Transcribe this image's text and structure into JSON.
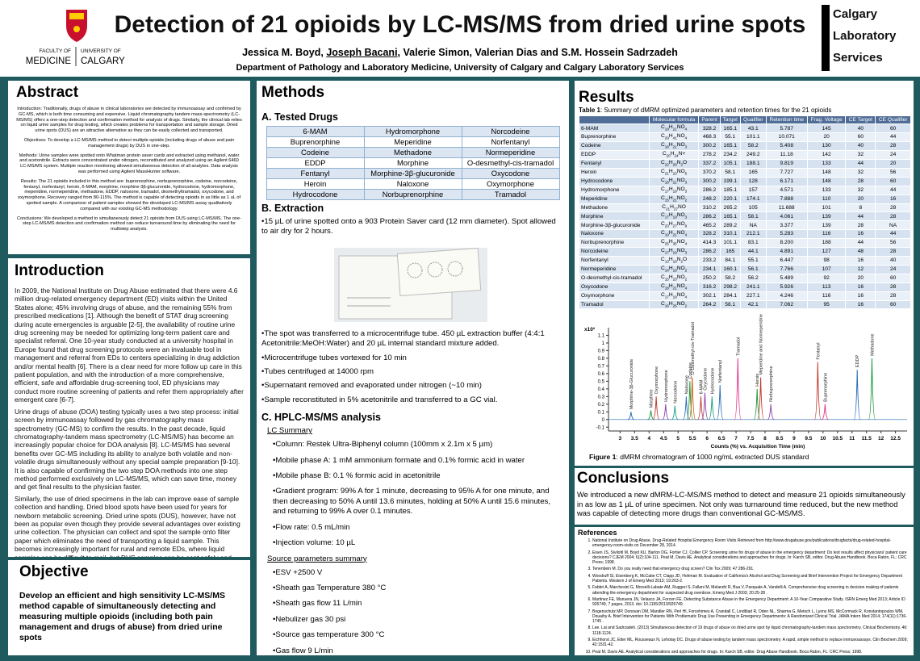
{
  "header": {
    "logo_left": {
      "faculty": "FACULTY OF",
      "medicine": "MEDICINE",
      "university": "UNIVERSITY OF",
      "calgary": "CALGARY"
    },
    "title": "Detection of 21 opioids by LC-MS/MS from dried urine spots",
    "authors": [
      "Jessica M. Boyd, ",
      "Joseph Bacani",
      ", Valerie Simon, Valerian Dias and S.M. Hossein Sadrzadeh"
    ],
    "department": "Department of Pathology and Laboratory Medicine, University of Calgary and Calgary Laboratory Services",
    "logo_right": [
      "Calgary",
      "Laboratory",
      "Services"
    ]
  },
  "abstract": {
    "title": "Abstract",
    "paragraphs": [
      "Introduction: Traditionally, drugs of abuse in clinical laboratories are detected by immunoassay and confirmed by GC-MS, which is both time consuming and expensive. Liquid chromatography tandem mass-spectrometry (LC-MS/MS) offers a one-step detection and confirmation method for analysis of drugs. Similarly, the clinical lab relies on liquid urine samples for drug testing, which creates problems for transportation and sample storage. Dried urine spots (DUS) are an attractive alternative as they can be easily collected and transported.",
      "Objectives: To develop a LC-MS/MS method to detect multiple opioids (including drugs of abuse and pain management drugs) by DUS in one-step.",
      "Methods: Urine samples were spotted onto Whatman protein saver cards and extracted using methanol, water and acetonitrile. Extracts were concentrated under nitrogen, reconstituted and analyzed using an Agilent 6460 LC-MS/MS system. Multiple reaction monitoring allowed simultaneous detection of all analytes. Data analysis was performed using Agilent MassHunter software.",
      "Results: The 21 opioids included in this method are: buprenorphine, norbuprenorphine, codeine, norcodeine, fentanyl, norfentanyl, heroin, 6-MAM, morphine, morphine-3β-glucuronide, hydrocodone, hydromorphone, meperidine, normeperidine, methadone, EDDP, naloxone, tramadol, desmethyltramadol, oxycodone, and oxymorphone. Recovery ranged from 80-115%. The method is capable of detecting opioids in as little as 1 uL of spotted sample. A comparison of patient samples showed the developed LC-MS/MS assay qualitatively compared with our existing GC-MS methodology.",
      "Conclusions: We developed a method to simultaneously detect 21 opioids from DUS using LC-MS/MS. The one-step LC-MS/MS detection and confirmation method can reduce turnaround time by eliminating the need for multistep analysis."
    ]
  },
  "introduction": {
    "title": "Introduction",
    "paragraphs": [
      "In 2009, the National Institute on Drug Abuse estimated that there were 4.6 million drug-related emergency department (ED) visits within the United States alone; 45% involving drugs of abuse, and the remaining 55% from prescribed medications [1]. Although the benefit of STAT drug screening during acute emergencies is arguable [2-5], the availability of routine urine drug screening may be needed for optimizing long-term patient care and specialist referral. One 10-year study conducted at a university hospital in Europe found that drug screening protocols were an invaluable tool in management and referral from EDs to centers specializing in drug addiction and/or mental health [6]. There is a clear need for more follow up care in this patient population, and with the introduction of a more comprehensive, efficient, safe and affordable drug-screening tool, ED physicians may conduct more routine screening of patients and refer them appropriately after emergent care [6-7].",
      "Urine drugs of abuse (DOA) testing typically uses a two step process: initial screen by immunoassay followed by gas chromatography mass spectrometry (GC-MS) to confirm the results. In the past decade, liquid chromatography-tandem mass spectrometry (LC-MS/MS) has become an increasingly popular choice for DOA analysis [8]. LC-MS/MS has several benefits over GC-MS including its ability to analyze both volatile and non-volatile drugs simultaneously without any special sample preparation [9-10]. It is also capable of confirming the two step DOA methods into one step method performed exclusively on LC-MS/MS, which can save time, money and get final results to the physician faster.",
      "Similarly, the use of dried specimens in the lab can improve ease of sample collection and handling. Dried blood spots have been used for years for newborn metabolic screening. Dried urine spots (DUS), however, have not been as popular even though they provide several advantages over existing urine collection. The physician can collect and spot the sample onto filter paper which eliminates the need of transporting a liquid sample. This becomes increasingly important for rural and remote EDs, where liquid samples can be difficult to mail, but DUS samples can be sent safely and easily to labs and the results used to help direct patient care."
    ]
  },
  "objective": {
    "title": "Objective",
    "text": "Develop an efficient and high sensitivity LC-MS/MS method capable of simultaneously detecting and measuring multiple opioids (including both pain management  and drugs of abuse) from dried urine spots"
  },
  "methods": {
    "title": "Methods",
    "tested_drugs": {
      "heading": "A. Tested Drugs",
      "rows": [
        [
          "6-MAM",
          "Hydromorphone",
          "Norcodeine"
        ],
        [
          "Buprenorphine",
          "Meperidine",
          "Norfentanyl"
        ],
        [
          "Codeine",
          "Methadone",
          "Normeperidine"
        ],
        [
          "EDDP",
          "Morphine",
          "O-desmethyl-cis-tramadol"
        ],
        [
          "Fentanyl",
          "Morphine-3β-glucuronide",
          "Oxycodone"
        ],
        [
          "Heroin",
          "Naloxone",
          "Oxymorphone"
        ],
        [
          "Hydrocodone",
          "Norbuprenorphine",
          "Tramadol"
        ]
      ]
    },
    "extraction": {
      "heading": "B. Extraction",
      "steps_before": [
        "15 µL of urine spotted onto a 903 Protein Saver card (12 mm diameter). Spot allowed to air dry for 2 hours."
      ],
      "steps_after": [
        "The spot was transferred to a microcentrifuge tube. 450 µL extraction buffer (4:4:1 Acetonitrile:MeOH:Water) and 20 µL internal standard mixture added.",
        "Microcentrifuge tubes vortexed for 10 min",
        "Tubes centrifuged at 14000 rpm",
        "Supernatant removed and evaporated under nitrogen (~10 min)",
        "Sample reconstituted in 5% acetonitrile and transferred to a GC vial."
      ]
    },
    "hplc": {
      "heading": "C. HPLC-MS/MS analysis",
      "lc_heading": "LC Summary",
      "lc_items": [
        "Column: Restek Ultra-Biphenyl column (100mm x 2.1m x 5 µm)",
        "Mobile phase A: 1 mM ammonium formate and 0.1% formic acid in water",
        "Mobile phase B: 0.1 % formic acid in acetonitrile",
        "Gradient program: 99% A for 1 minute, decreasing to 95% A for one minute, and then decreasing to 50% A until 13.6 minutes, holding at 50% A until 15.6 minutes, and returning to 99% A over 0.1 minutes.",
        "Flow rate: 0.5 mL/min",
        "Injection volume: 10 µL"
      ],
      "source_heading": "Source parameters summary",
      "source_items": [
        "ESV +2500 V",
        "Sheath gas Temperature 380 °C",
        "Sheath gas flow 11 L/min",
        "Nebulizer gas 30 psi",
        "Source gas temperature 300 °C",
        "Gas flow 9 L/min"
      ]
    }
  },
  "results": {
    "title": "Results",
    "table": {
      "label": "Table 1",
      "caption": ": Summary of dMRM optimized parameters and retention times for the 21 opioids",
      "columns": [
        "",
        "Molecular formula",
        "Parent",
        "Target",
        "Qualifier",
        "Retention time",
        "Frag. Voltage",
        "CE Target",
        "CE Qualifier"
      ],
      "rows": [
        [
          "6-MAM",
          "C19H21NO4",
          "328.2",
          "165.1",
          "43.1",
          "5.787",
          "145",
          "40",
          "60"
        ],
        [
          "Buprenorphine",
          "C29H41NO4",
          "468.3",
          "55.1",
          "101.1",
          "10.071",
          "20",
          "60",
          "44"
        ],
        [
          "Codeine",
          "C18H21NO3",
          "300.2",
          "165.1",
          "58.2",
          "5.408",
          "130",
          "40",
          "28"
        ],
        [
          "EDDP",
          "C20H24N+",
          "278.2",
          "234.2",
          "249.2",
          "11.18",
          "142",
          "32",
          "24"
        ],
        [
          "Fentanyl",
          "C22H28N2O",
          "337.2",
          "105.1",
          "188.1",
          "9.819",
          "133",
          "44",
          "20"
        ],
        [
          "Heroin",
          "C21H23NO5",
          "370.2",
          "58.1",
          "165",
          "7.727",
          "148",
          "32",
          "56"
        ],
        [
          "Hydrocodone",
          "C18H21NO3",
          "300.2",
          "199.1",
          "128",
          "6.171",
          "148",
          "28",
          "60"
        ],
        [
          "Hydromorphone",
          "C17H19NO3",
          "286.2",
          "185.1",
          "157",
          "4.571",
          "133",
          "32",
          "44"
        ],
        [
          "Meperidine",
          "C15H21NO2",
          "248.2",
          "220.1",
          "174.1",
          "7.888",
          "110",
          "20",
          "16"
        ],
        [
          "Methadone",
          "C21H27NO",
          "310.2",
          "265.2",
          "105",
          "11.688",
          "101",
          "8",
          "28"
        ],
        [
          "Morphine",
          "C17H19NO3",
          "286.2",
          "165.1",
          "58.1",
          "4.061",
          "139",
          "44",
          "28"
        ],
        [
          "Morphine-3β-glucuronide",
          "C23H27NO9",
          "465.2",
          "289.2",
          "NA",
          "3.377",
          "139",
          "28",
          "NA"
        ],
        [
          "Naloxone",
          "C19H21NO4",
          "328.2",
          "310.1",
          "212.1",
          "5.283",
          "116",
          "16",
          "44"
        ],
        [
          "Norbuprenorphine",
          "C25H35NO4",
          "414.3",
          "101.1",
          "83.1",
          "8.200",
          "188",
          "44",
          "56"
        ],
        [
          "Norcodeine",
          "C17H19NO3",
          "286.2",
          "165",
          "44.1",
          "4.891",
          "127",
          "48",
          "28"
        ],
        [
          "Norfentanyl",
          "C13H18N2O",
          "233.2",
          "84.1",
          "55.1",
          "6.447",
          "98",
          "16",
          "40"
        ],
        [
          "Normeperidine",
          "C14H19NO2",
          "234.1",
          "160.1",
          "56.1",
          "7.766",
          "107",
          "12",
          "24"
        ],
        [
          "O-desmethyl-cis-tramadol",
          "C15H23NO2",
          "250.2",
          "58.2",
          "56.2",
          "5.489",
          "92",
          "20",
          "60"
        ],
        [
          "Oxycodone",
          "C18H21NO4",
          "316.2",
          "298.2",
          "241.1",
          "5.926",
          "113",
          "16",
          "28"
        ],
        [
          "Oxymorphone",
          "C17H19NO4",
          "302.1",
          "284.1",
          "227.1",
          "4.246",
          "116",
          "16",
          "28"
        ],
        [
          "Tramadol",
          "C16H25NO2",
          "264.2",
          "58.1",
          "42.1",
          "7.062",
          "95",
          "16",
          "60"
        ]
      ]
    },
    "figure": {
      "type": "chromatogram",
      "y_unit": "x10²",
      "xlabel": "Counts (%) vs. Acquisition Time (min)",
      "xlim": [
        2.6,
        12.9
      ],
      "ylim": [
        -0.15,
        1.2
      ],
      "xticks": [
        3,
        3.5,
        4,
        4.5,
        5,
        5.5,
        6,
        6.5,
        7,
        7.5,
        8,
        8.5,
        9,
        9.5,
        10,
        10.5,
        11,
        11.5,
        12,
        12.5
      ],
      "yticks": [
        -0.1,
        0,
        0.1,
        0.2,
        0.3,
        0.4,
        0.5,
        0.6,
        0.7,
        0.8,
        0.9,
        1,
        1.1
      ],
      "peaks": [
        {
          "name": "Morphine-3β-Glucuronide",
          "x": 3.377,
          "y": 0.1,
          "color": "#2a6fb5"
        },
        {
          "name": "Morphine",
          "x": 4.061,
          "y": 0.12,
          "color": "#1a9b3a"
        },
        {
          "name": "Oxymorphone",
          "x": 4.246,
          "y": 0.3,
          "color": "#c0392b"
        },
        {
          "name": "Hydromorphone",
          "x": 4.571,
          "y": 0.2,
          "color": "#8e44ad"
        },
        {
          "name": "Norcodeine",
          "x": 4.891,
          "y": 0.18,
          "color": "#16a085"
        },
        {
          "name": "Naloxone",
          "x": 5.283,
          "y": 0.3,
          "color": "#2a6fb5"
        },
        {
          "name": "Codeine",
          "x": 5.408,
          "y": 0.5,
          "color": "#1a9b3a"
        },
        {
          "name": "O-Desmethyl-cis-Tramadol",
          "x": 5.489,
          "y": 0.55,
          "color": "#d35400"
        },
        {
          "name": "6-MAM",
          "x": 5.787,
          "y": 0.3,
          "color": "#c0392b"
        },
        {
          "name": "Oxycodone",
          "x": 5.926,
          "y": 0.35,
          "color": "#8e44ad"
        },
        {
          "name": "Hydrocodone",
          "x": 6.171,
          "y": 0.3,
          "color": "#16a085"
        },
        {
          "name": "Norfentanyl",
          "x": 6.447,
          "y": 0.45,
          "color": "#2a6fb5"
        },
        {
          "name": "Tramadol",
          "x": 7.062,
          "y": 0.8,
          "color": "#e0358a"
        },
        {
          "name": "Heroin",
          "x": 7.727,
          "y": 0.4,
          "color": "#1a9b3a"
        },
        {
          "name": "Meperidine and Normeperidine",
          "x": 7.85,
          "y": 0.55,
          "color": "#c0392b"
        },
        {
          "name": "Norbuprenorphine",
          "x": 8.2,
          "y": 0.2,
          "color": "#8e44ad"
        },
        {
          "name": "Fentanyl",
          "x": 9.819,
          "y": 0.75,
          "color": "#c0392b"
        },
        {
          "name": "Buprenorphine",
          "x": 10.071,
          "y": 0.2,
          "color": "#e0358a"
        },
        {
          "name": "EDDP",
          "x": 11.18,
          "y": 0.65,
          "color": "#2a6fb5"
        },
        {
          "name": "Methadone",
          "x": 11.688,
          "y": 0.8,
          "color": "#1a9b3a"
        }
      ],
      "label": "Figure 1",
      "caption": ": dMRM chromatogram of 1000 ng/mL extracted DUS standard"
    }
  },
  "conclusions": {
    "title": "Conclusions",
    "text": "We introduced a new dMRM-LC-MS/MS method to detect and measure 21 opioids simultaneously in as low as 1 µL of urine specimen. Not only was turnaround time reduced, but the new method was capable of detecting more drugs than conventional GC-MS/MS."
  },
  "references": {
    "title": "References",
    "items": [
      "National Institute on Drug Abuse, Drug-Related Hospital Emergency Room Visits Retrieved from http://www.drugabuse.gov/publications/drugfacts/drug-related-hospital-emergency-room-visits on December 28, 2014.",
      "Eisen JS, Sivilotti M, Boyd KU, Barton DG, Fortier CJ, Collier CP. Screening urine for drugs of abuse in the emergency department: Do test results affect physicians' patient care decisions? CJEM 2004; 6(2):104-111. Peat M, Davis AE. Analytical considerations and approaches for drugs. In: Karch SB, editor. Drug Abuse Handbook. Boca Raton, FL: CRC Press; 1998.",
      "Tenenbein M. Do you really need that emergency drug screen? Clin Tox 2009; 47:286-291.",
      "Woodruff SI, Eisenberg K, McCabe CT, Clapp JD, Hohman M. Evaluation of California's Alcohol and Drug Screening and Brief Intervention Project for Emergency Department Patients. Western J of Emerg Med 2013; 19:263-2.",
      "Fabbri A, Marchesini G, Morselli-Labate AM, Ruggeri S, Fallani M, Melandri R, Bua V, Pasquale A, Vandelli A. Comprehensive drug screening in decision making of patients attending the emergency department for suspected drug overdose. Emerg Med J 2003; 20:25-28 .",
      "Martinez FE, Munuera JN, Velasco JA, Forcen FE. Detecting Substance Abuse in the Emergency Department: A 10-Year Comparative Study. ISRN Emerg Med 2013; Article ID 926749, 7 pages, 2013. doi: 10.1155/2013/926749 .",
      "Bogenschutz MP, Donovan DM, Mandler RN, Perl HI, Forcehimes A, Crandall C, Lindblad R, Oden NL, Sharma G, Metsch L, Lyons MS, McCormack R, Konstantopoulos WM, Douaihy A. Brief Intervention for Patients With Problematic Drug Use Presenting in Emergency Departments: A Randomized Clinical Trial. JAMA Intern Med 2014; 174(11):1736-1745 .",
      "Lee. Lai and Sadrzadeh. (2013) Simultaneous detection of 19 drugs of abuse on dried urine spot by liquid chromatography-tandem mass spectrometry. Clinical Biochemistry. 46: 1118-1124.",
      "Eichhorst JC, Etter ML, Rousseaux N, Lehotay DC. Drugs of abuse testing by tandem mass spectrometry: A rapid, simple method to replace immunoassays. Clin Biochem 2009; 42:1531-42.",
      "Peat M, Davis AE. Analytical considerations and approaches for drugs. In: Karch SB, editor. Drug Abuse Handbook. Boca Raton, FL: CRC Press; 1998."
    ]
  }
}
